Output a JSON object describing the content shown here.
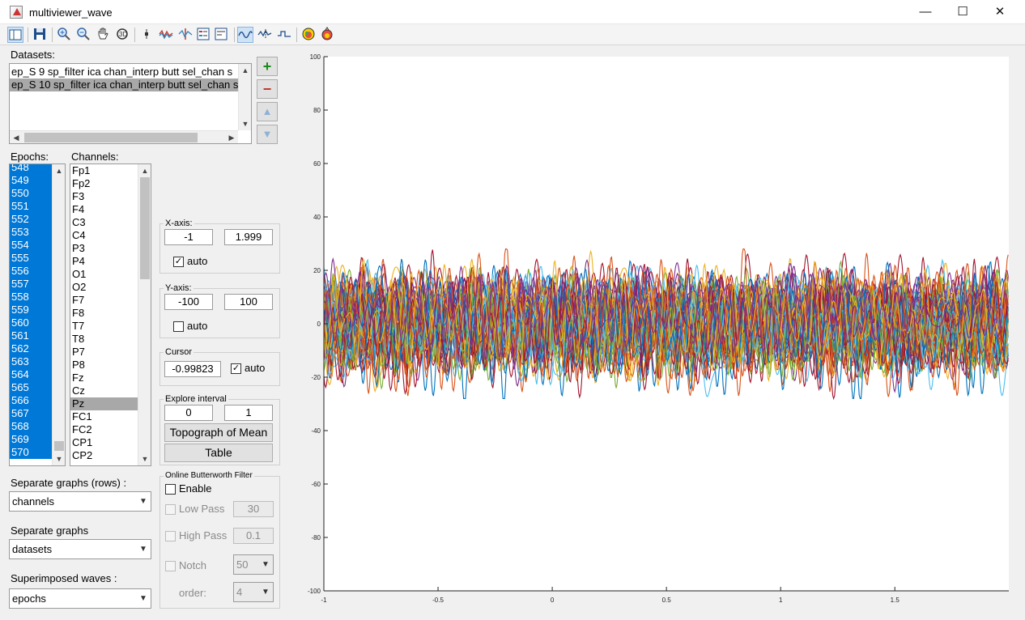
{
  "window": {
    "title": "multiviewer_wave",
    "minimize_glyph": "—",
    "maximize_glyph": "☐",
    "close_glyph": "✕"
  },
  "toolbar": {
    "icons": [
      "layout-icon",
      "save-icon",
      "zoom-in-icon",
      "zoom-out-icon",
      "pan-icon",
      "rotate-icon",
      "data-cursor-icon",
      "wave-compare-icon",
      "cursor-marker-icon",
      "legend-icon",
      "panel-icon",
      "wave-view-icon",
      "wave-peaks-icon",
      "wave-step-icon",
      "topo-map-icon",
      "topo-head-icon"
    ]
  },
  "datasets": {
    "label": "Datasets:",
    "items": [
      "ep_S  9 sp_filter ica chan_interp butt sel_chan s",
      "ep_S 10 sp_filter ica chan_interp butt sel_chan s"
    ],
    "selected_index": 1
  },
  "dataset_buttons": {
    "add": "+",
    "remove": "−",
    "up": "^",
    "down": "v"
  },
  "epochs": {
    "label": "Epochs:",
    "items": [
      "548",
      "549",
      "550",
      "551",
      "552",
      "553",
      "554",
      "555",
      "556",
      "557",
      "558",
      "559",
      "560",
      "561",
      "562",
      "563",
      "564",
      "565",
      "566",
      "567",
      "568",
      "569",
      "570"
    ]
  },
  "channels": {
    "label": "Channels:",
    "items": [
      "Fp1",
      "Fp2",
      "F3",
      "F4",
      "C3",
      "C4",
      "P3",
      "P4",
      "O1",
      "O2",
      "F7",
      "F8",
      "T7",
      "T8",
      "P7",
      "P8",
      "Fz",
      "Cz",
      "Pz",
      "FC1",
      "FC2",
      "CP1",
      "CP2"
    ],
    "selected": "Pz"
  },
  "xaxis": {
    "title": "X-axis:",
    "min": "-1",
    "max": "1.999",
    "auto_label": "auto",
    "auto": true
  },
  "yaxis": {
    "title": "Y-axis:",
    "min": "-100",
    "max": "100",
    "auto_label": "auto",
    "auto": false
  },
  "cursor": {
    "title": "Cursor",
    "value": "-0.99823",
    "auto_label": "auto",
    "auto": true
  },
  "explore": {
    "title": "Explore interval",
    "from": "0",
    "to": "1",
    "topo_button": "Topograph of Mean",
    "table_button": "Table"
  },
  "filter": {
    "title": "Online Butterworth Filter",
    "enable_label": "Enable",
    "lowpass_label": "Low Pass",
    "lowpass_value": "30",
    "highpass_label": "High Pass",
    "highpass_value": "0.1",
    "notch_label": "Notch",
    "notch_value": "50",
    "order_label": "order:",
    "order_value": "4"
  },
  "separate_rows": {
    "label": "Separate graphs (rows) :",
    "value": "channels"
  },
  "separate_cols": {
    "label": "Separate graphs",
    "value": "datasets"
  },
  "superimposed": {
    "label": "Superimposed waves :",
    "value": "epochs"
  },
  "chart_data": {
    "type": "line",
    "xlim": [
      -1,
      1.999
    ],
    "ylim": [
      -100,
      100
    ],
    "xticks": [
      -1,
      -0.5,
      0,
      0.5,
      1,
      1.5
    ],
    "xtick_labels": [
      "-1",
      "-0.5",
      "0",
      "0.5",
      "1",
      "1.5"
    ],
    "yticks": [
      -100,
      -80,
      -60,
      -40,
      -20,
      0,
      20,
      40,
      60,
      80,
      100
    ],
    "ytick_labels": [
      "-100",
      "-80",
      "-60",
      "-40",
      "-20",
      "0",
      "20",
      "40",
      "60",
      "80",
      "100"
    ],
    "band_range": [
      -28,
      28
    ],
    "n_series": 60,
    "colors": [
      "#0072bd",
      "#d95319",
      "#edb120",
      "#7e2f8e",
      "#77ac30",
      "#4dbeee",
      "#a2142f"
    ],
    "grid": false,
    "legend": "none"
  }
}
